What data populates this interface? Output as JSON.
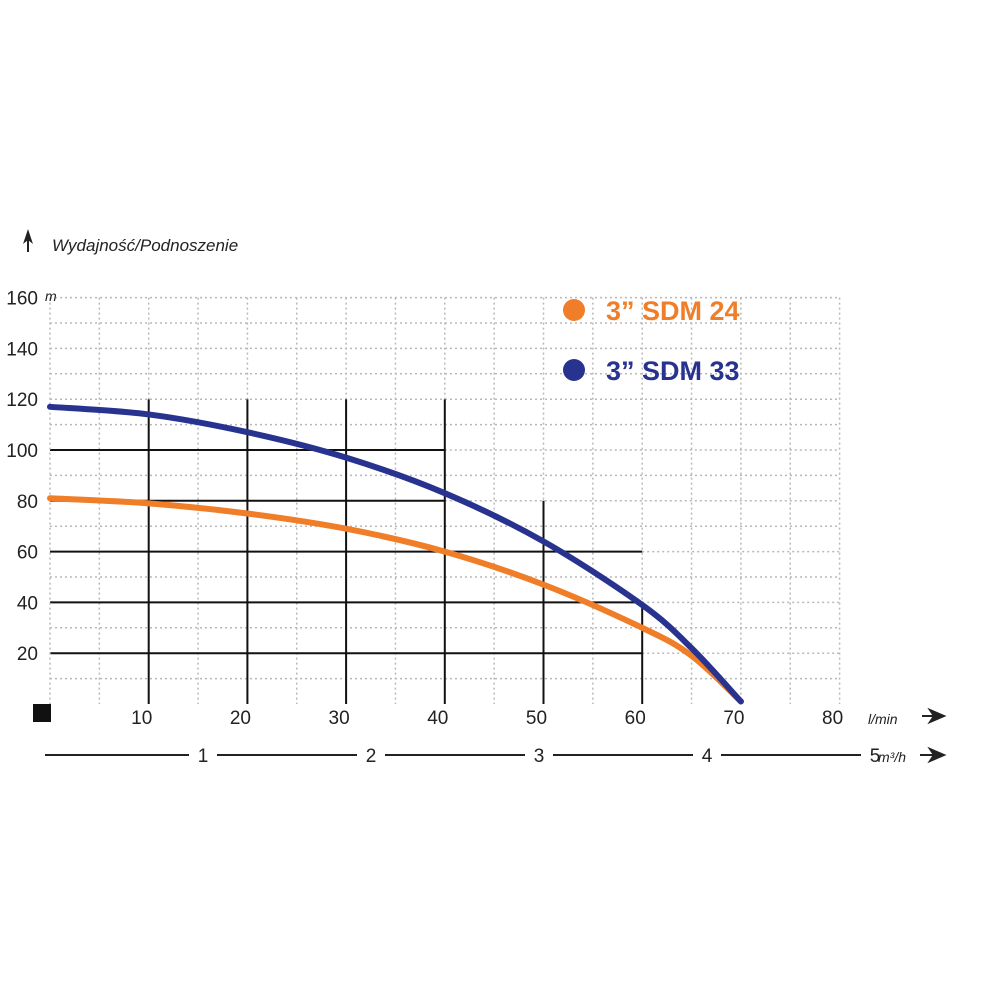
{
  "chart_data": {
    "type": "line",
    "title": "",
    "y_axis": {
      "label": "Wydajność/Podnoszenie",
      "unit": "m",
      "range": [
        0,
        160
      ],
      "ticks": [
        20,
        40,
        60,
        80,
        100,
        120,
        140,
        160
      ]
    },
    "x_axis": {
      "unit": "l/min",
      "range": [
        0,
        80
      ],
      "ticks": [
        10,
        20,
        30,
        40,
        50,
        60,
        70,
        80
      ]
    },
    "x2_axis": {
      "unit": "m³/h",
      "range": [
        0,
        5
      ],
      "ticks": [
        1,
        2,
        3,
        4,
        5
      ]
    },
    "grid": true,
    "legend": {
      "position": "top-right",
      "items": [
        {
          "label": "3” SDM 24",
          "color": "#f07d28"
        },
        {
          "label": "3” SDM 33",
          "color": "#27338f"
        }
      ]
    },
    "series": [
      {
        "name": "3” SDM 24",
        "color": "#f07d28",
        "points": [
          [
            0,
            81
          ],
          [
            10,
            79
          ],
          [
            20,
            75
          ],
          [
            30,
            69
          ],
          [
            40,
            60
          ],
          [
            50,
            47
          ],
          [
            60,
            30
          ],
          [
            65,
            19
          ],
          [
            70,
            1
          ]
        ]
      },
      {
        "name": "3” SDM 33",
        "color": "#27338f",
        "points": [
          [
            0,
            117
          ],
          [
            10,
            114
          ],
          [
            20,
            107
          ],
          [
            30,
            97
          ],
          [
            40,
            83
          ],
          [
            50,
            64
          ],
          [
            60,
            39
          ],
          [
            65,
            22
          ],
          [
            70,
            1
          ]
        ]
      }
    ]
  },
  "colors": {
    "grid_major": "#111111",
    "grid_minor": "#b8b8b8",
    "axis": "#222222"
  }
}
